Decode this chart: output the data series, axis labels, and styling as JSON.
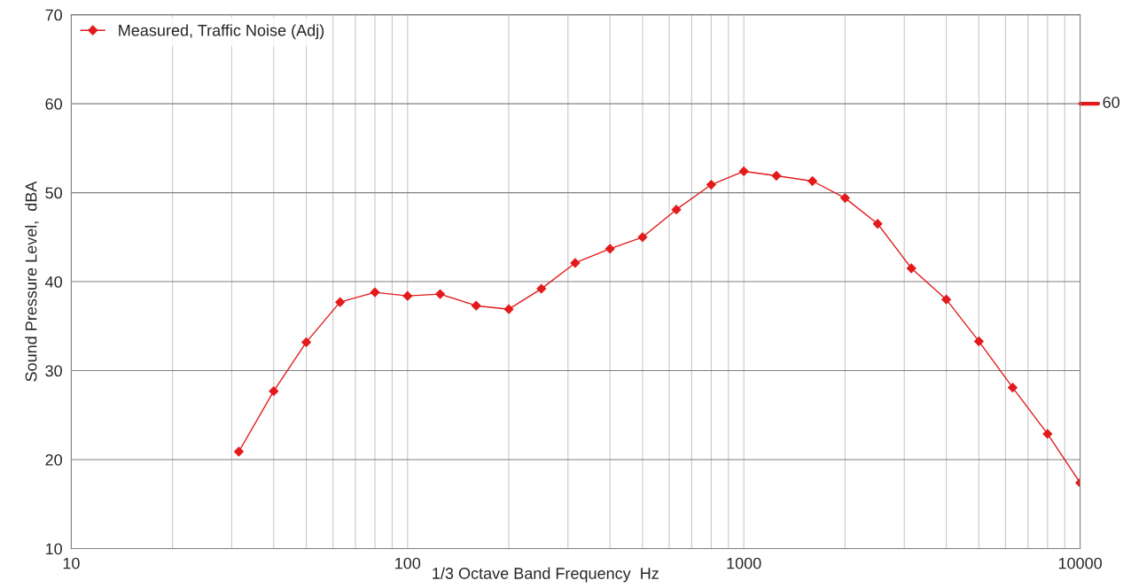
{
  "chart_data": {
    "type": "line",
    "xlabel": "1/3 Octave Band Frequency  Hz",
    "ylabel": "Sound Pressure Level,  dBA",
    "x": [
      31.5,
      40,
      50,
      63,
      80,
      100,
      125,
      160,
      200,
      250,
      315,
      400,
      500,
      630,
      800,
      1000,
      1250,
      1600,
      2000,
      2500,
      3150,
      4000,
      5000,
      6300,
      8000,
      10000
    ],
    "series": [
      {
        "name": "Measured, Traffic Noise (Adj)",
        "color": "#e31a1c",
        "values": [
          20.9,
          27.7,
          33.2,
          37.7,
          38.8,
          38.4,
          38.6,
          37.3,
          36.9,
          39.2,
          42.1,
          43.7,
          45.0,
          48.1,
          50.9,
          52.4,
          51.9,
          51.3,
          49.4,
          46.5,
          41.5,
          38.0,
          33.3,
          28.1,
          22.9,
          17.4
        ]
      }
    ],
    "log": "x",
    "xlim": [
      10,
      10000
    ],
    "xticks": [
      10,
      100,
      1000,
      10000
    ],
    "ylim": [
      10,
      70
    ],
    "yticks": [
      10,
      20,
      30,
      40,
      50,
      60,
      70
    ],
    "ref_lines": [
      {
        "axis": "y",
        "value": 60,
        "label": "60",
        "color": "#e31a1c"
      }
    ],
    "grid": true,
    "legend": "top left",
    "marker": "diamond",
    "line_style": "solid"
  }
}
